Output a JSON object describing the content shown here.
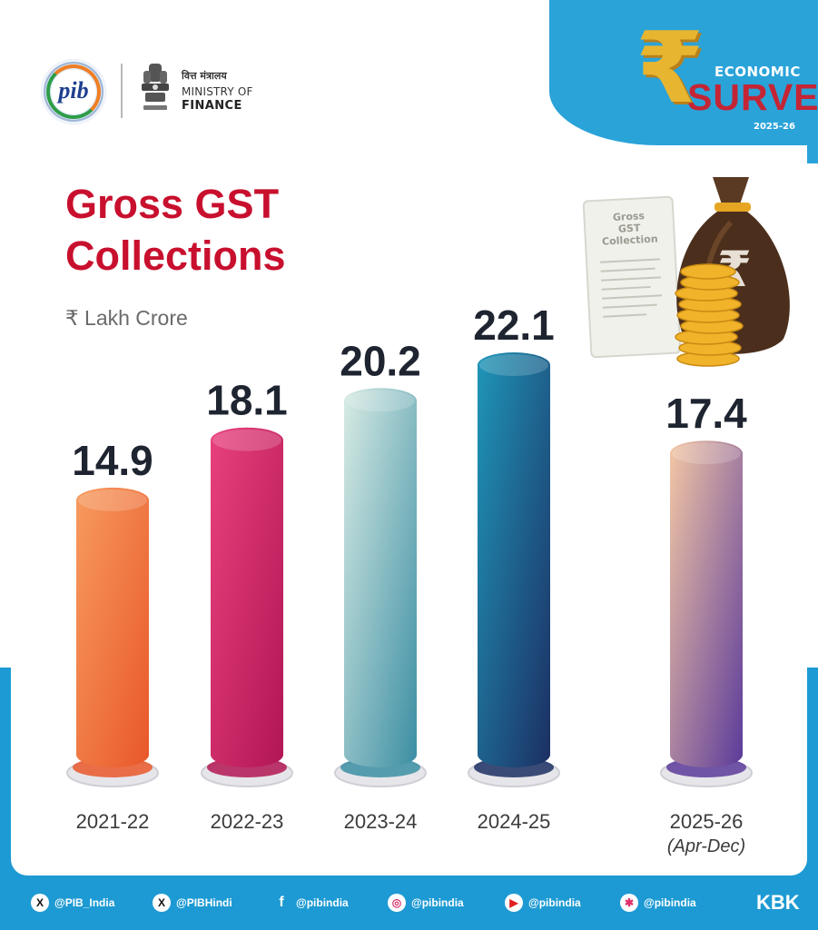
{
  "header": {
    "pib_logo_text": "pib",
    "ministry_hindi": "वित्त मंत्रालय",
    "ministry_of": "MINISTRY OF",
    "ministry_finance": "FINANCE"
  },
  "badge": {
    "line1": "ECONOMIC",
    "line2": "SURVEY",
    "year": "2025-26",
    "symbol": "₹"
  },
  "decor": {
    "doc_title_1": "Gross",
    "doc_title_2": "GST",
    "doc_title_3": "Collection",
    "bag_symbol": "₹"
  },
  "chart_data": {
    "type": "bar",
    "title": "Gross GST Collections",
    "ylabel": "₹ Lakh Crore",
    "categories": [
      "2021-22",
      "2022-23",
      "2023-24",
      "2024-25",
      "2025-26"
    ],
    "category_notes": [
      "",
      "",
      "",
      "",
      "(Apr-Dec)"
    ],
    "values": [
      14.9,
      18.1,
      20.2,
      22.1,
      17.4
    ],
    "value_labels": [
      "14.9",
      "18.1",
      "20.2",
      "22.1",
      "17.4"
    ],
    "ylim": [
      0,
      22.1
    ],
    "grid": false,
    "legend": "none",
    "colors": [
      [
        "#f79b5e",
        "#e9572a"
      ],
      [
        "#e8417d",
        "#b21654"
      ],
      [
        "#d8ebe4",
        "#3b8ea3"
      ],
      [
        "#1f96b8",
        "#1c2f63"
      ],
      [
        "#f4c8a5",
        "#5b3a9a"
      ]
    ]
  },
  "footer": {
    "handles": [
      {
        "icon": "x-icon",
        "glyph": "X",
        "text": "@PIB_India",
        "color": "#111111"
      },
      {
        "icon": "x-icon",
        "glyph": "X",
        "text": "@PIBHindi",
        "color": "#111111"
      },
      {
        "icon": "facebook-icon",
        "glyph": "f",
        "text": "@pibindia",
        "color": "#1877f2"
      },
      {
        "icon": "instagram-icon",
        "glyph": "◎",
        "text": "@pibindia",
        "color": "#d6336c"
      },
      {
        "icon": "youtube-icon",
        "glyph": "▶",
        "text": "@pibindia",
        "color": "#e02020"
      },
      {
        "icon": "koo-icon",
        "glyph": "✱",
        "text": "@pibindia",
        "color": "#e0306a"
      }
    ],
    "tag": "KBK"
  }
}
